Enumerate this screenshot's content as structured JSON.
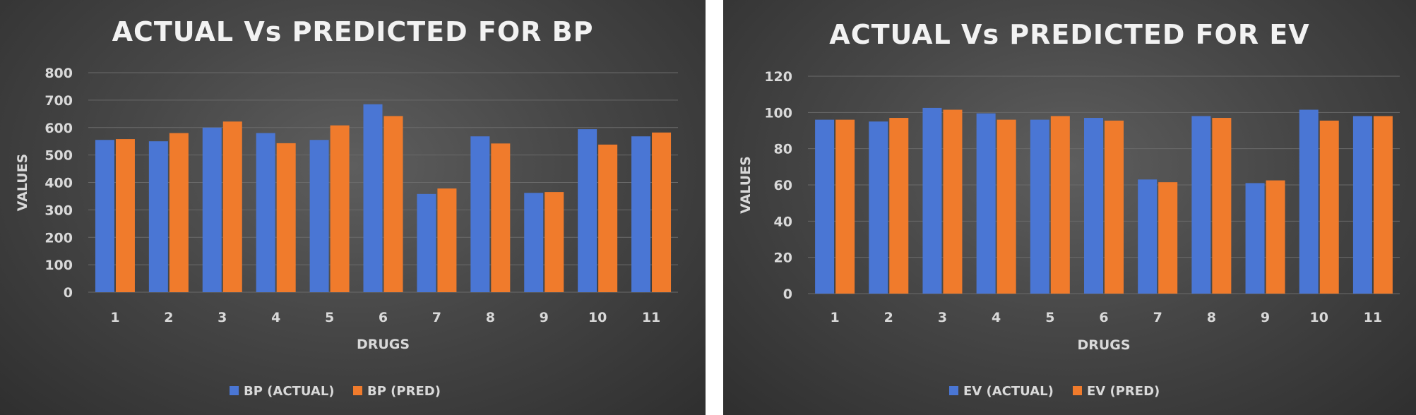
{
  "chart_data": [
    {
      "type": "bar",
      "title": "ACTUAL Vs PREDICTED FOR BP",
      "xlabel": "DRUGS",
      "ylabel": "VALUES",
      "categories": [
        "1",
        "2",
        "3",
        "4",
        "5",
        "6",
        "7",
        "8",
        "9",
        "10",
        "11"
      ],
      "series": [
        {
          "name": "BP (ACTUAL)",
          "values": [
            555,
            550,
            600,
            580,
            555,
            685,
            358,
            568,
            362,
            594,
            568
          ]
        },
        {
          "name": "BP (PRED)",
          "values": [
            558,
            580,
            622,
            543,
            608,
            642,
            378,
            542,
            365,
            538,
            582
          ]
        }
      ],
      "ylim": [
        0,
        800
      ],
      "yticks": [
        0,
        100,
        200,
        300,
        400,
        500,
        600,
        700,
        800
      ],
      "grid": true,
      "legend_position": "bottom",
      "colors": [
        "#4a76d4",
        "#f07b2c"
      ]
    },
    {
      "type": "bar",
      "title": "ACTUAL Vs PREDICTED FOR EV",
      "xlabel": "DRUGS",
      "ylabel": "VALUES",
      "categories": [
        "1",
        "2",
        "3",
        "4",
        "5",
        "6",
        "7",
        "8",
        "9",
        "10",
        "11"
      ],
      "series": [
        {
          "name": "EV (ACTUAL)",
          "values": [
            96,
            95,
            102.5,
            99.5,
            96,
            97,
            63,
            98,
            61,
            101.5,
            98
          ]
        },
        {
          "name": "EV (PRED)",
          "values": [
            96,
            97,
            101.5,
            96,
            98,
            95.5,
            61.5,
            97,
            62.5,
            95.5,
            98
          ]
        }
      ],
      "ylim": [
        0,
        120
      ],
      "yticks": [
        0,
        20,
        40,
        60,
        80,
        100,
        120
      ],
      "grid": true,
      "legend_position": "bottom",
      "colors": [
        "#4a76d4",
        "#f07b2c"
      ]
    }
  ]
}
